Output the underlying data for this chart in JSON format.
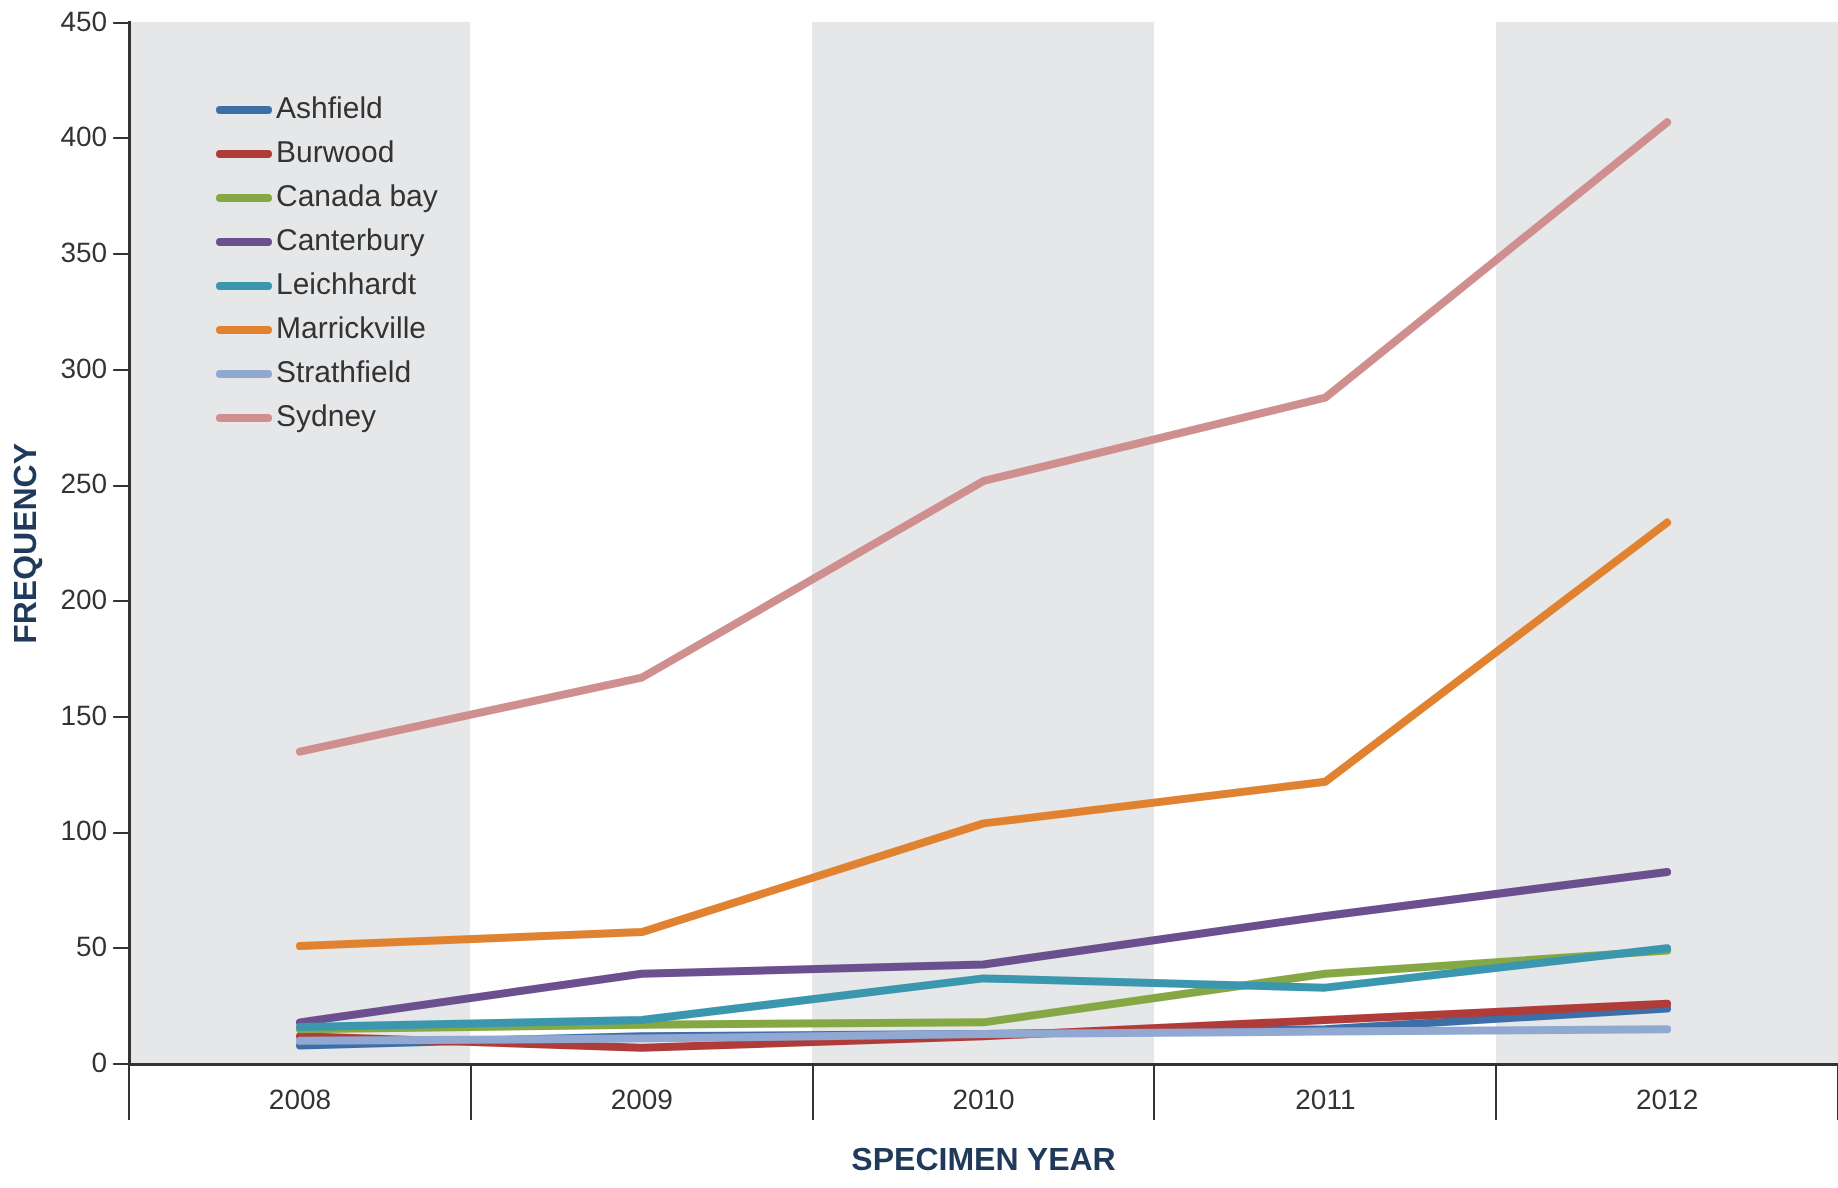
{
  "chart_data": {
    "type": "line",
    "xlabel": "SPECIMEN YEAR",
    "ylabel": "FREQUENCY",
    "categories": [
      "2008",
      "2009",
      "2010",
      "2011",
      "2012"
    ],
    "series": [
      {
        "name": "Ashfield",
        "color": "#3c6fa8",
        "values": [
          8,
          12,
          13,
          15,
          24
        ]
      },
      {
        "name": "Burwood",
        "color": "#b03c3a",
        "values": [
          12,
          7,
          12,
          19,
          26
        ]
      },
      {
        "name": "Canada bay",
        "color": "#86a844",
        "values": [
          15,
          17,
          18,
          39,
          49
        ]
      },
      {
        "name": "Canterbury",
        "color": "#6b4f8e",
        "values": [
          18,
          39,
          43,
          64,
          83
        ]
      },
      {
        "name": "Leichhardt",
        "color": "#3a97ae",
        "values": [
          16,
          19,
          37,
          33,
          50
        ]
      },
      {
        "name": "Marrickville",
        "color": "#e0822f",
        "values": [
          51,
          57,
          104,
          122,
          234
        ]
      },
      {
        "name": "Strathfield",
        "color": "#91a9d2",
        "values": [
          10,
          11,
          13,
          14,
          15
        ]
      },
      {
        "name": "Sydney",
        "color": "#d08f8f",
        "values": [
          135,
          167,
          252,
          288,
          407
        ]
      }
    ],
    "ylim": [
      0,
      450
    ],
    "yticks": [
      0,
      50,
      100,
      150,
      200,
      250,
      300,
      350,
      400,
      450
    ],
    "grid": false,
    "legend": "top left",
    "marker": "none",
    "line_style": "solid"
  }
}
